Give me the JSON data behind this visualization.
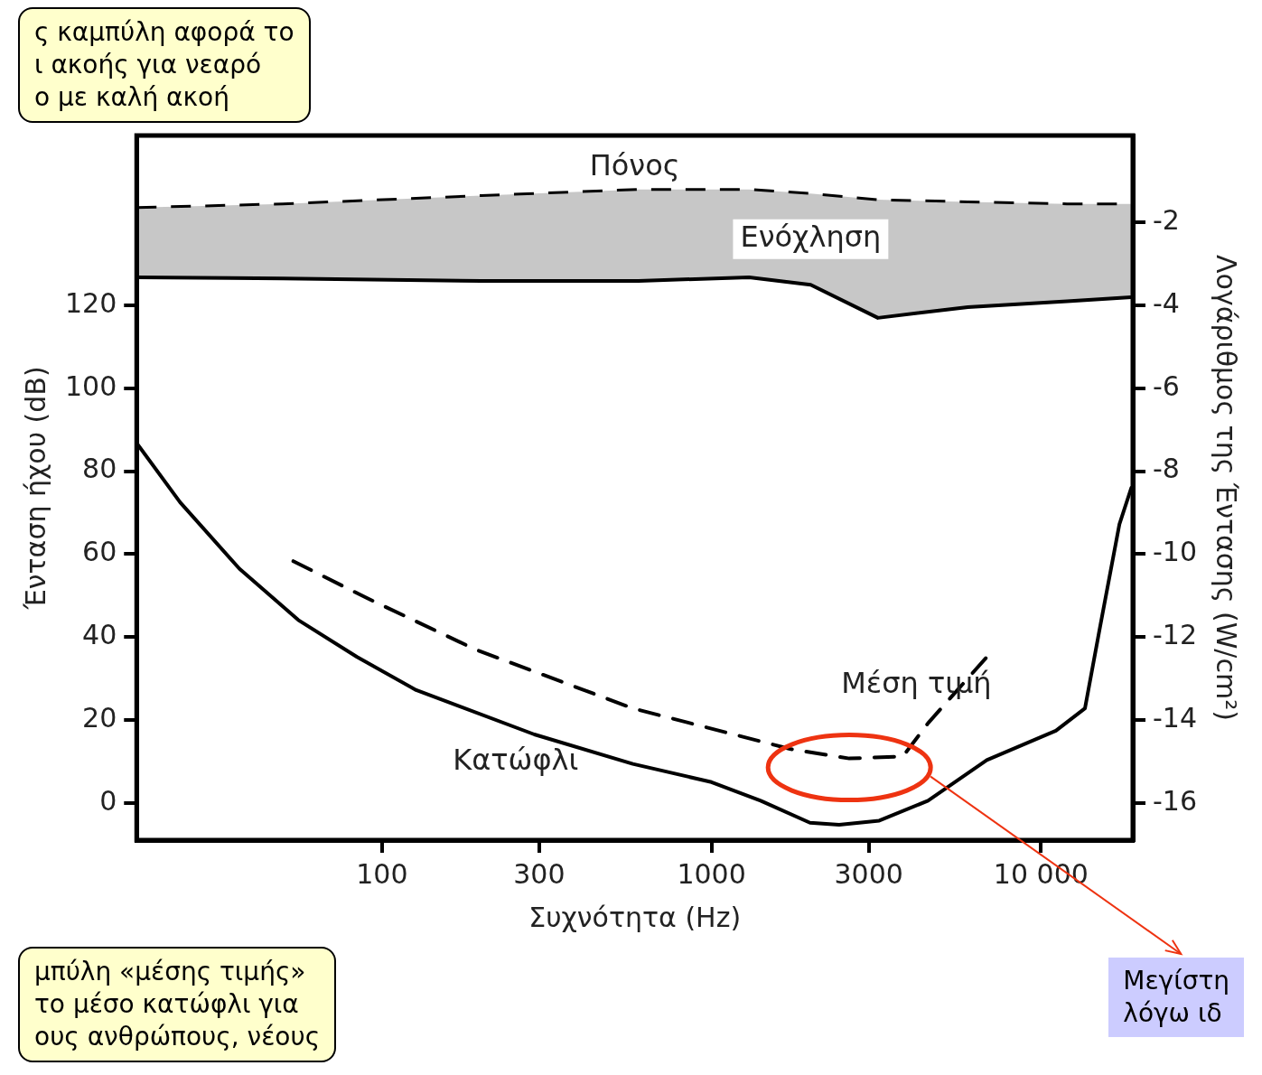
{
  "chart_data": {
    "type": "line",
    "xlabel": "Συχνότητα (Hz)",
    "ylabel": "Ένταση ήχου (dB)",
    "y2label": "Λογάριθμος της Έντασης (W/cm²)",
    "log": "x",
    "grid": false,
    "legend": false,
    "marker": "none",
    "xlim": [
      18,
      19000
    ],
    "xticks": [
      100,
      300,
      1000,
      3000,
      {
        "value": 10000,
        "label": "10 000"
      }
    ],
    "ylim": [
      -9,
      161
    ],
    "yticks": [
      0,
      20,
      40,
      60,
      80,
      100,
      120
    ],
    "y2lim": [
      -16.9,
      0.1
    ],
    "y2ticks": [
      -16,
      -14,
      -12,
      -10,
      -8,
      -6,
      -4,
      -2
    ],
    "series": [
      {
        "name": "Κατώφλι",
        "color": "#000000",
        "line_style": "solid",
        "x": [
          18,
          24.4,
          36.9,
          55.7,
          84,
          127,
          290,
          577,
          1000,
          1410,
          1990,
          2440,
          3230,
          4540,
          6850,
          11100,
          13600,
          15100,
          17300,
          18800
        ],
        "values": [
          86.8,
          72.5,
          56.5,
          44.1,
          35.2,
          27.2,
          16.5,
          9.4,
          5,
          0.5,
          -4.8,
          -5.3,
          -4.3,
          0.5,
          10.3,
          17.4,
          22.8,
          42.3,
          67.2,
          76
        ]
      },
      {
        "name": "Μέση τιμή",
        "color": "#000000",
        "line_style": "dashed",
        "x": [
          53.8,
          90,
          192,
          577,
          1730,
          2620,
          3810,
          4540,
          6850
        ],
        "values": [
          58.3,
          49.4,
          37,
          22.8,
          13,
          10.7,
          11.2,
          19.2,
          35.2
        ]
      },
      {
        "color": "#000000",
        "line_style": "solid",
        "x": [
          18,
          50,
          200,
          600,
          1300,
          2000,
          3200,
          6000,
          12000,
          18800
        ],
        "values": [
          126.8,
          126.5,
          125.9,
          125.9,
          126.8,
          125,
          117,
          119.6,
          121,
          122
        ]
      },
      {
        "name": "Ενόχληση",
        "type": "area",
        "color": "#000000",
        "line_style": "dashed",
        "x": [
          18,
          50,
          200,
          600,
          1300,
          2000,
          3200,
          6000,
          12000,
          18800
        ],
        "values": [
          143.6,
          144.5,
          146.5,
          148,
          148,
          147,
          145.5,
          145,
          144.5,
          144.5
        ]
      }
    ],
    "annotations": [
      "Πόνος",
      "ς καμπύλη αφορά το\nι ακοής για νεαρό\nο με καλή ακοή",
      "μπύλη «μέσης τιμής»\nτο μέσο κατώφλι για\nους ανθρώπους, νέους",
      "Μεγίστη\nλόγω ιδ"
    ]
  }
}
